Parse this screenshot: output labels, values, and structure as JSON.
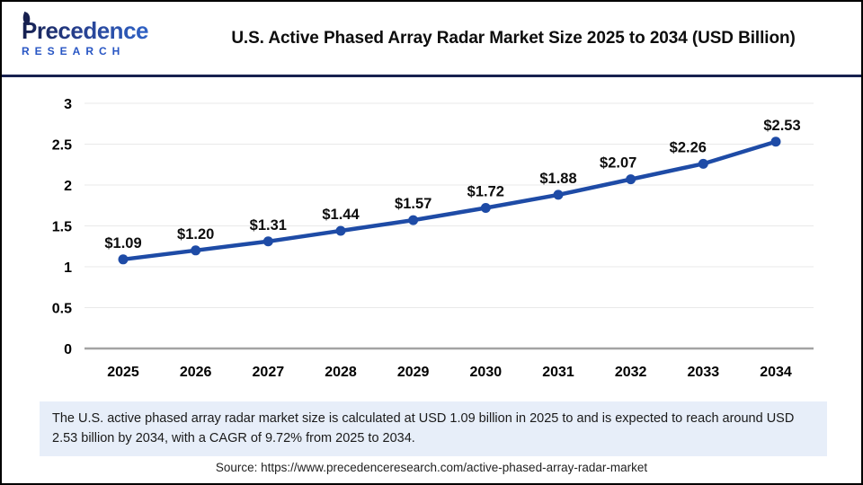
{
  "header": {
    "logo_line1": "Precedence",
    "logo_line2": "RESEARCH",
    "title": "U.S. Active Phased Array Radar Market Size 2025 to 2034 (USD Billion)"
  },
  "chart_data": {
    "type": "line",
    "title": "U.S. Active Phased Array Radar Market Size 2025 to 2034 (USD Billion)",
    "categories": [
      "2025",
      "2026",
      "2027",
      "2028",
      "2029",
      "2030",
      "2031",
      "2032",
      "2033",
      "2034"
    ],
    "series": [
      {
        "name": "U.S. Active Phased Array Radar Market Size (USD Billion)",
        "values": [
          1.09,
          1.2,
          1.31,
          1.44,
          1.57,
          1.72,
          1.88,
          2.07,
          2.26,
          2.53
        ]
      }
    ],
    "point_labels": [
      "$1.09",
      "$1.20",
      "$1.31",
      "$1.44",
      "$1.57",
      "$1.72",
      "$1.88",
      "$2.07",
      "$2.26",
      "$2.53"
    ],
    "xlabel": "",
    "ylabel": "",
    "ylim": [
      0,
      3
    ],
    "y_ticks": [
      0,
      0.5,
      1,
      1.5,
      2,
      2.5,
      3
    ],
    "y_tick_labels": [
      "0",
      "0.5",
      "1",
      "1.5",
      "2",
      "2.5",
      "3"
    ],
    "grid": true,
    "legend": "none",
    "line_color": "#1e4ba6",
    "marker_color": "#1e4ba6",
    "grid_color": "#e9e9e9",
    "axis_line_color": "#a3a3a3",
    "tick_label_color": "#000000",
    "point_label_color": "#0d0d0d"
  },
  "footer": {
    "summary": "The U.S. active phased array radar market size is calculated at USD 1.09 billion in 2025 to and is expected to reach around USD 2.53 billion by 2034, with a CAGR of 9.72% from 2025 to 2034.",
    "source": "Source: https://www.precedenceresearch.com/active-phased-array-radar-market"
  },
  "colors": {
    "header_divider": "#17204f",
    "summary_background": "#e7eef9",
    "logo_navy": "#17204f",
    "logo_blue": "#2f62c6",
    "border": "#000000"
  }
}
